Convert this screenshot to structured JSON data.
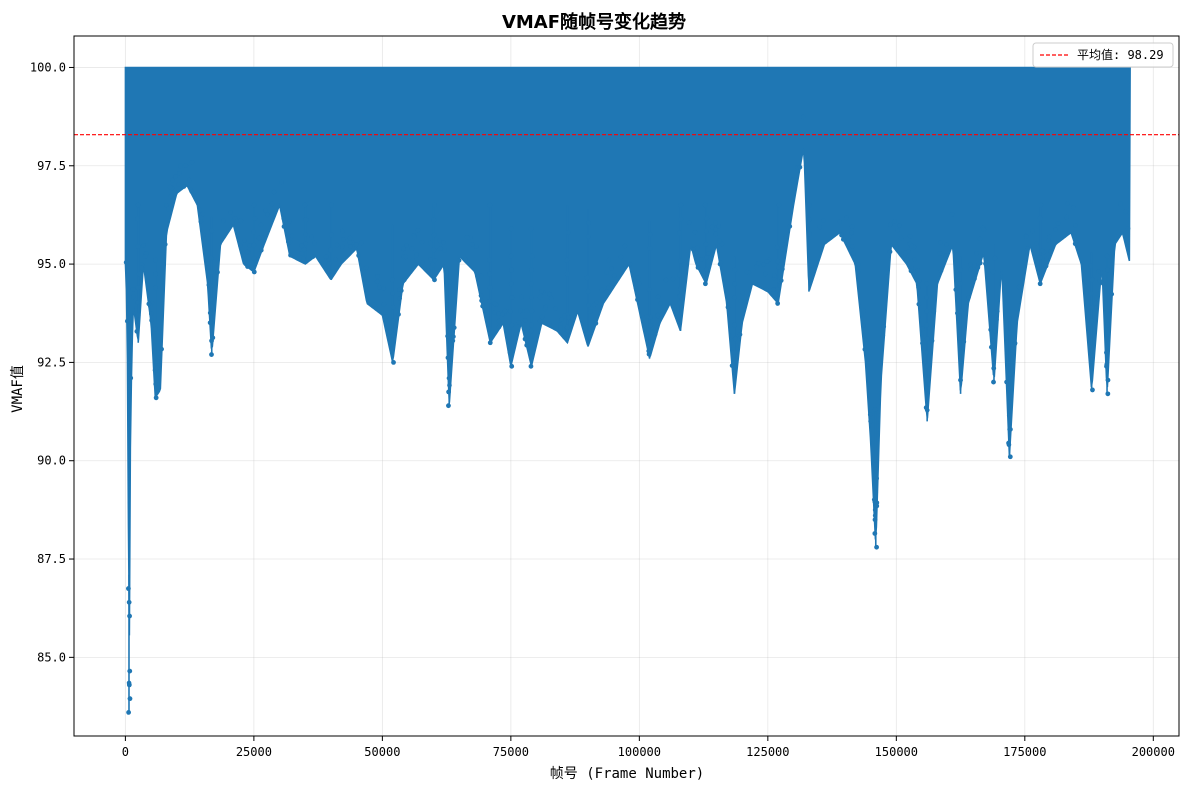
{
  "chart_data": {
    "type": "line",
    "title": "VMAF随帧号变化趋势",
    "xlabel": "帧号 (Frame Number)",
    "ylabel": "VMAF值",
    "xlim": [
      -10000,
      205000
    ],
    "ylim": [
      83.0,
      100.8
    ],
    "xticks": [
      0,
      25000,
      50000,
      75000,
      100000,
      125000,
      150000,
      175000,
      200000
    ],
    "xtick_labels": [
      "0",
      "25000",
      "50000",
      "75000",
      "100000",
      "125000",
      "150000",
      "175000",
      "200000"
    ],
    "yticks": [
      85.0,
      87.5,
      90.0,
      92.5,
      95.0,
      97.5,
      100.0
    ],
    "ytick_labels": [
      "85.0",
      "87.5",
      "90.0",
      "92.5",
      "95.0",
      "97.5",
      "100.0"
    ],
    "grid": true,
    "legend_position": "top-right",
    "x_max": 195500,
    "series": [
      {
        "name": "",
        "color": "#1f77b4",
        "marker": "dot",
        "min_envelope": [
          [
            0,
            96.5
          ],
          [
            300,
            93.2
          ],
          [
            500,
            91.8
          ],
          [
            700,
            83.6
          ],
          [
            800,
            86.1
          ],
          [
            1000,
            91.0
          ],
          [
            1500,
            94.0
          ],
          [
            2500,
            93.0
          ],
          [
            3500,
            95.0
          ],
          [
            5000,
            93.5
          ],
          [
            5800,
            91.6
          ],
          [
            6800,
            91.8
          ],
          [
            8000,
            95.8
          ],
          [
            10000,
            96.8
          ],
          [
            12000,
            97.0
          ],
          [
            14000,
            96.5
          ],
          [
            16000,
            94.5
          ],
          [
            16800,
            92.7
          ],
          [
            18500,
            95.5
          ],
          [
            21000,
            96.0
          ],
          [
            23000,
            95.0
          ],
          [
            25000,
            94.8
          ],
          [
            27000,
            95.5
          ],
          [
            30000,
            96.5
          ],
          [
            32000,
            95.2
          ],
          [
            35000,
            95.0
          ],
          [
            37000,
            95.2
          ],
          [
            40000,
            94.6
          ],
          [
            42000,
            95.0
          ],
          [
            45000,
            95.4
          ],
          [
            47000,
            94.0
          ],
          [
            50000,
            93.7
          ],
          [
            52000,
            92.5
          ],
          [
            54000,
            94.5
          ],
          [
            57000,
            95.0
          ],
          [
            60000,
            94.6
          ],
          [
            62000,
            95.0
          ],
          [
            63000,
            91.4
          ],
          [
            65000,
            95.2
          ],
          [
            68000,
            94.8
          ],
          [
            71000,
            93.0
          ],
          [
            73500,
            93.5
          ],
          [
            75000,
            92.4
          ],
          [
            77000,
            93.5
          ],
          [
            79000,
            92.4
          ],
          [
            81000,
            93.5
          ],
          [
            84000,
            93.3
          ],
          [
            86000,
            93.0
          ],
          [
            88000,
            93.8
          ],
          [
            90000,
            92.9
          ],
          [
            93000,
            94.0
          ],
          [
            96000,
            94.6
          ],
          [
            98000,
            95.0
          ],
          [
            100000,
            93.8
          ],
          [
            102000,
            92.6
          ],
          [
            104000,
            93.5
          ],
          [
            106000,
            94.0
          ],
          [
            108000,
            93.3
          ],
          [
            110000,
            95.5
          ],
          [
            111000,
            95.0
          ],
          [
            113000,
            94.5
          ],
          [
            115000,
            95.5
          ],
          [
            117000,
            94.0
          ],
          [
            118500,
            91.7
          ],
          [
            120000,
            93.5
          ],
          [
            122000,
            94.5
          ],
          [
            125000,
            94.3
          ],
          [
            127000,
            94.0
          ],
          [
            130000,
            96.5
          ],
          [
            132000,
            98.0
          ],
          [
            133000,
            94.3
          ],
          [
            136000,
            95.5
          ],
          [
            139000,
            95.8
          ],
          [
            142000,
            95.0
          ],
          [
            144000,
            92.5
          ],
          [
            145000,
            90.5
          ],
          [
            146000,
            87.8
          ],
          [
            147000,
            92.0
          ],
          [
            149000,
            95.5
          ],
          [
            152000,
            95.0
          ],
          [
            154000,
            94.5
          ],
          [
            156000,
            91.0
          ],
          [
            158000,
            94.5
          ],
          [
            161000,
            95.5
          ],
          [
            162500,
            91.7
          ],
          [
            164000,
            94.0
          ],
          [
            167000,
            95.3
          ],
          [
            169000,
            92.0
          ],
          [
            170500,
            95.0
          ],
          [
            172000,
            90.1
          ],
          [
            173500,
            93.5
          ],
          [
            176000,
            95.5
          ],
          [
            178000,
            94.5
          ],
          [
            181000,
            95.5
          ],
          [
            184000,
            95.8
          ],
          [
            186000,
            95.0
          ],
          [
            188000,
            91.8
          ],
          [
            190000,
            95.0
          ],
          [
            191000,
            91.7
          ],
          [
            192500,
            95.5
          ],
          [
            194000,
            95.8
          ],
          [
            195500,
            95.0
          ]
        ]
      },
      {
        "name": "平均值: 98.29",
        "type": "hline",
        "y": 98.29,
        "color": "#ff0000",
        "linestyle": "dashed"
      }
    ]
  }
}
